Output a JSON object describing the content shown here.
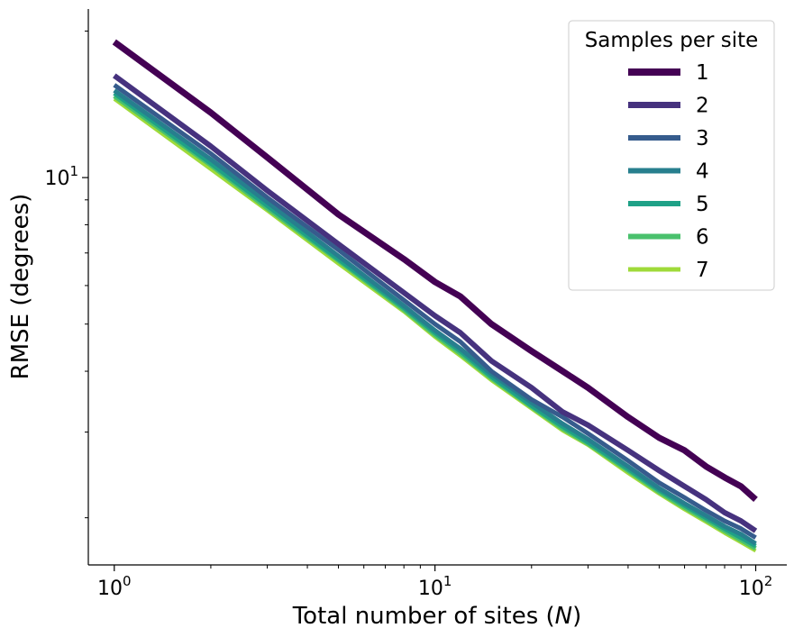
{
  "chart_data": {
    "type": "line",
    "xscale": "log",
    "yscale": "log",
    "xlabel": "Total number of sites (N)",
    "xlabel_parts": {
      "prefix": "Total number of sites (",
      "italic": "N",
      "suffix": ")"
    },
    "ylabel": "RMSE (degrees)",
    "xlim": [
      0.83,
      125
    ],
    "ylim": [
      1.6,
      22.2
    ],
    "xticks": [
      {
        "value": 1,
        "base": "10",
        "exp": "0"
      },
      {
        "value": 10,
        "base": "10",
        "exp": "1"
      },
      {
        "value": 100,
        "base": "10",
        "exp": "2"
      }
    ],
    "yticks": [
      {
        "value": 10,
        "base": "10",
        "exp": "1"
      }
    ],
    "grid": false,
    "legend": {
      "title": "Samples per site",
      "placement": "top-right"
    },
    "series": [
      {
        "name": "1",
        "color": "#440154",
        "width": 7,
        "x": [
          1,
          2,
          3,
          5,
          8,
          10,
          12,
          15,
          20,
          25,
          30,
          40,
          50,
          60,
          70,
          80,
          90,
          100
        ],
        "y": [
          19.0,
          13.6,
          11.0,
          8.4,
          6.8,
          6.1,
          5.7,
          5.0,
          4.4,
          4.0,
          3.7,
          3.22,
          2.92,
          2.75,
          2.55,
          2.42,
          2.32,
          2.18
        ]
      },
      {
        "name": "2",
        "color": "#46327e",
        "width": 6,
        "x": [
          1,
          2,
          3,
          5,
          8,
          10,
          12,
          15,
          20,
          25,
          30,
          40,
          50,
          60,
          70,
          80,
          90,
          100
        ],
        "y": [
          16.2,
          11.6,
          9.4,
          7.3,
          5.8,
          5.2,
          4.8,
          4.2,
          3.7,
          3.3,
          3.1,
          2.75,
          2.5,
          2.32,
          2.18,
          2.05,
          1.97,
          1.88
        ]
      },
      {
        "name": "3",
        "color": "#365c8d",
        "width": 5,
        "x": [
          1,
          2,
          3,
          5,
          8,
          10,
          12,
          15,
          20,
          25,
          30,
          40,
          50,
          60,
          70,
          80,
          90,
          100
        ],
        "y": [
          15.5,
          11.2,
          9.1,
          7.1,
          5.6,
          5.0,
          4.6,
          4.0,
          3.5,
          3.22,
          2.98,
          2.62,
          2.36,
          2.2,
          2.07,
          1.97,
          1.9,
          1.82
        ]
      },
      {
        "name": "4",
        "color": "#277f8e",
        "width": 5,
        "x": [
          1,
          2,
          3,
          5,
          8,
          10,
          12,
          15,
          20,
          25,
          30,
          40,
          50,
          60,
          70,
          80,
          90,
          100
        ],
        "y": [
          15.1,
          10.9,
          8.9,
          6.9,
          5.45,
          4.85,
          4.45,
          3.95,
          3.45,
          3.12,
          2.9,
          2.55,
          2.3,
          2.14,
          2.02,
          1.92,
          1.85,
          1.77
        ]
      },
      {
        "name": "5",
        "color": "#1fa187",
        "width": 5,
        "x": [
          1,
          2,
          3,
          5,
          8,
          10,
          12,
          15,
          20,
          25,
          30,
          40,
          50,
          60,
          70,
          80,
          90,
          100
        ],
        "y": [
          14.9,
          10.7,
          8.75,
          6.8,
          5.4,
          4.8,
          4.4,
          3.9,
          3.4,
          3.08,
          2.86,
          2.52,
          2.28,
          2.12,
          2.0,
          1.9,
          1.82,
          1.75
        ]
      },
      {
        "name": "6",
        "color": "#4ac16d",
        "width": 5,
        "x": [
          1,
          2,
          3,
          5,
          8,
          10,
          12,
          15,
          20,
          25,
          30,
          40,
          50,
          60,
          70,
          80,
          90,
          100
        ],
        "y": [
          14.7,
          10.6,
          8.65,
          6.75,
          5.35,
          4.75,
          4.35,
          3.87,
          3.38,
          3.05,
          2.84,
          2.5,
          2.26,
          2.1,
          1.98,
          1.88,
          1.8,
          1.73
        ]
      },
      {
        "name": "7",
        "color": "#9fda3a",
        "width": 4,
        "x": [
          1,
          2,
          3,
          5,
          8,
          10,
          12,
          15,
          20,
          25,
          30,
          40,
          50,
          60,
          70,
          80,
          90,
          100
        ],
        "y": [
          14.5,
          10.4,
          8.55,
          6.65,
          5.3,
          4.7,
          4.3,
          3.83,
          3.35,
          3.02,
          2.82,
          2.47,
          2.24,
          2.08,
          1.96,
          1.86,
          1.78,
          1.71
        ]
      }
    ]
  }
}
